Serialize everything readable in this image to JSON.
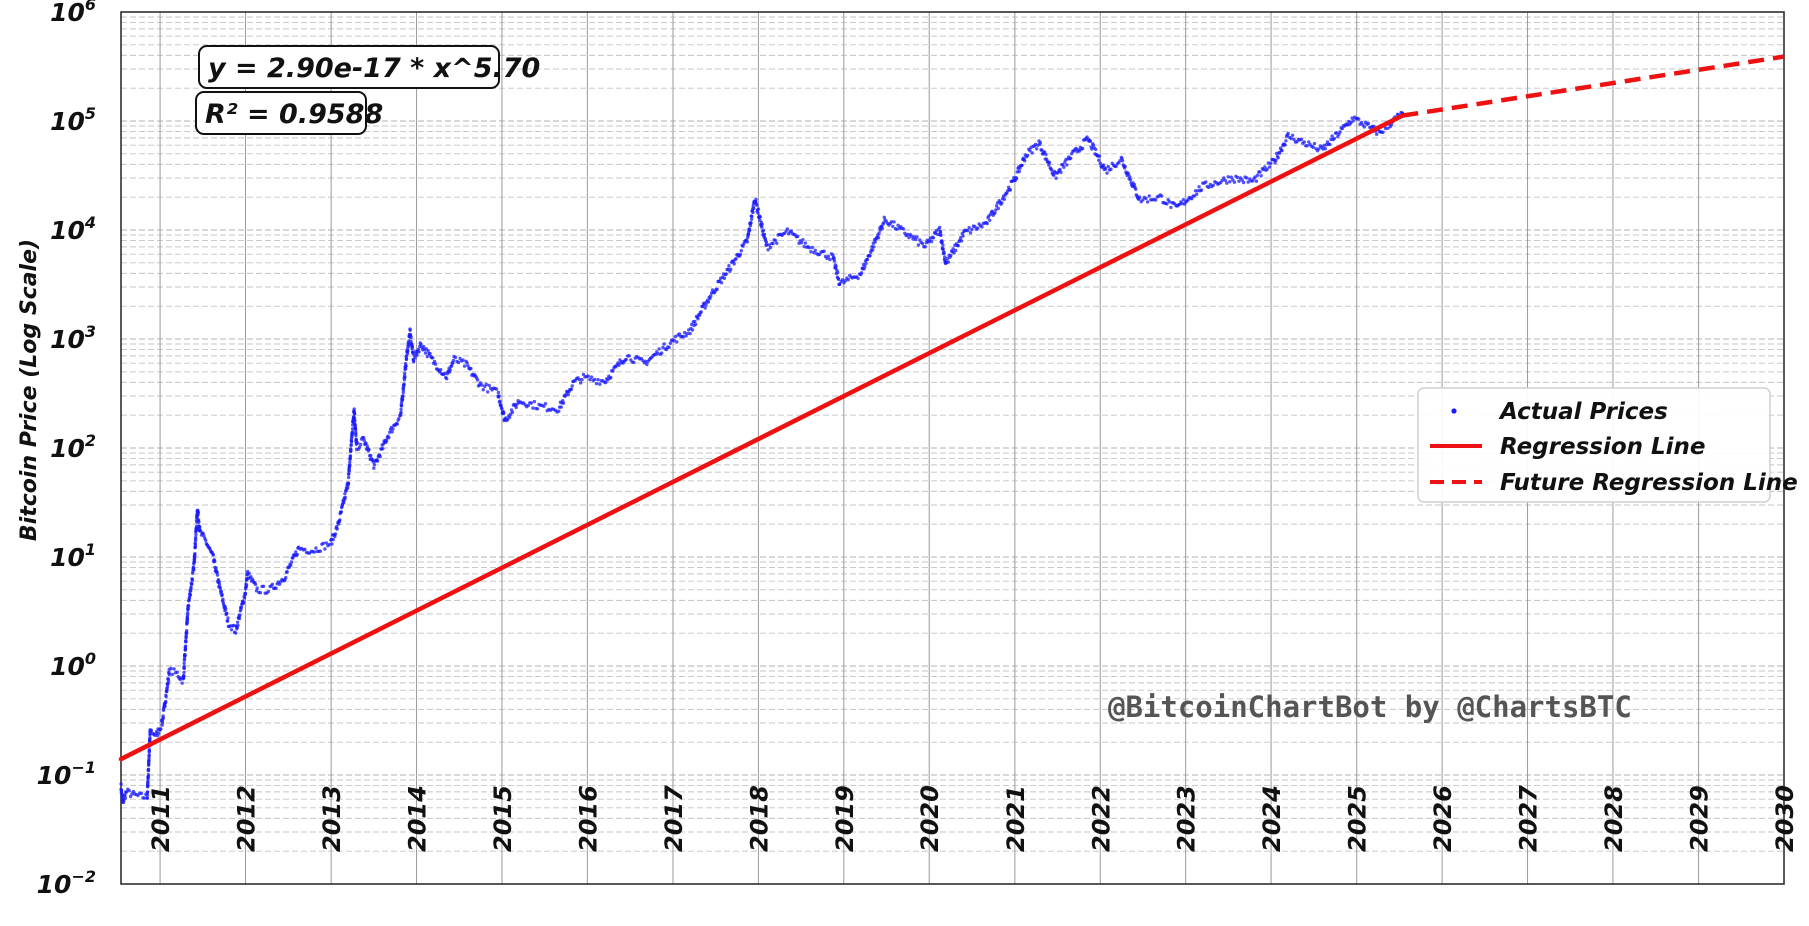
{
  "chart_data": {
    "type": "scatter",
    "ylabel": "Bitcoin Price (Log Scale)",
    "y_scale": "log",
    "ylim": [
      0.01,
      1000000
    ],
    "xlim": [
      "2010-07-18",
      "2030-01-01"
    ],
    "y_ticks": [
      {
        "base": "10",
        "exp": "−2",
        "value": 0.01
      },
      {
        "base": "10",
        "exp": "−1",
        "value": 0.1
      },
      {
        "base": "10",
        "exp": "0",
        "value": 1
      },
      {
        "base": "10",
        "exp": "1",
        "value": 10
      },
      {
        "base": "10",
        "exp": "2",
        "value": 100
      },
      {
        "base": "10",
        "exp": "3",
        "value": 1000
      },
      {
        "base": "10",
        "exp": "4",
        "value": 10000
      },
      {
        "base": "10",
        "exp": "5",
        "value": 100000
      },
      {
        "base": "10",
        "exp": "6",
        "value": 1000000
      }
    ],
    "x_ticks": [
      {
        "label": "2011",
        "date": "2011-01-01"
      },
      {
        "label": "2012",
        "date": "2012-01-01"
      },
      {
        "label": "2013",
        "date": "2013-01-01"
      },
      {
        "label": "2014",
        "date": "2014-01-01"
      },
      {
        "label": "2015",
        "date": "2015-01-01"
      },
      {
        "label": "2016",
        "date": "2016-01-01"
      },
      {
        "label": "2017",
        "date": "2017-01-01"
      },
      {
        "label": "2018",
        "date": "2018-01-01"
      },
      {
        "label": "2019",
        "date": "2019-01-01"
      },
      {
        "label": "2020",
        "date": "2020-01-01"
      },
      {
        "label": "2021",
        "date": "2021-01-01"
      },
      {
        "label": "2022",
        "date": "2022-01-01"
      },
      {
        "label": "2023",
        "date": "2023-01-01"
      },
      {
        "label": "2024",
        "date": "2024-01-01"
      },
      {
        "label": "2025",
        "date": "2025-01-01"
      },
      {
        "label": "2026",
        "date": "2026-01-01"
      },
      {
        "label": "2027",
        "date": "2027-01-01"
      },
      {
        "label": "2028",
        "date": "2028-01-01"
      },
      {
        "label": "2029",
        "date": "2029-01-01"
      },
      {
        "label": "2030",
        "date": "2030-01-01"
      }
    ],
    "equation": "y = 2.90e-17 * x^5.70",
    "r_squared": "R² = 0.9588",
    "legend_position": "center-right",
    "series": [
      {
        "name": "Actual Prices",
        "kind": "scatter",
        "color": "#1a1aff",
        "points": [
          [
            "2010-07-18",
            0.08
          ],
          [
            "2010-07-25",
            0.055
          ],
          [
            "2010-08-10",
            0.07
          ],
          [
            "2010-09-15",
            0.065
          ],
          [
            "2010-10-20",
            0.063
          ],
          [
            "2010-11-07",
            0.063
          ],
          [
            "2010-11-20",
            0.26
          ],
          [
            "2010-12-15",
            0.23
          ],
          [
            "2011-01-10",
            0.3
          ],
          [
            "2011-02-10",
            0.9
          ],
          [
            "2011-03-15",
            0.85
          ],
          [
            "2011-04-10",
            0.73
          ],
          [
            "2011-05-01",
            3.5
          ],
          [
            "2011-05-25",
            8.0
          ],
          [
            "2011-06-10",
            28.0
          ],
          [
            "2011-06-20",
            17.0
          ],
          [
            "2011-07-15",
            14.0
          ],
          [
            "2011-08-15",
            10.0
          ],
          [
            "2011-09-15",
            5.0
          ],
          [
            "2011-10-20",
            2.5
          ],
          [
            "2011-11-20",
            2.1
          ],
          [
            "2011-12-31",
            4.7
          ],
          [
            "2012-01-10",
            7.0
          ],
          [
            "2012-02-20",
            5.0
          ],
          [
            "2012-04-15",
            5.0
          ],
          [
            "2012-06-15",
            6.5
          ],
          [
            "2012-08-15",
            12.0
          ],
          [
            "2012-10-15",
            11.5
          ],
          [
            "2012-12-31",
            13.4
          ],
          [
            "2013-02-01",
            20.0
          ],
          [
            "2013-03-15",
            48.0
          ],
          [
            "2013-04-09",
            230.0
          ],
          [
            "2013-04-20",
            100.0
          ],
          [
            "2013-05-20",
            120.0
          ],
          [
            "2013-07-05",
            68.0
          ],
          [
            "2013-09-01",
            130.0
          ],
          [
            "2013-10-25",
            200.0
          ],
          [
            "2013-11-20",
            700.0
          ],
          [
            "2013-12-04",
            1150.0
          ],
          [
            "2013-12-20",
            650.0
          ],
          [
            "2014-01-20",
            900.0
          ],
          [
            "2014-03-15",
            620.0
          ],
          [
            "2014-05-10",
            450.0
          ],
          [
            "2014-06-10",
            650.0
          ],
          [
            "2014-08-01",
            580.0
          ],
          [
            "2014-10-01",
            380.0
          ],
          [
            "2014-12-15",
            320.0
          ],
          [
            "2015-01-14",
            180.0
          ],
          [
            "2015-03-15",
            270.0
          ],
          [
            "2015-06-15",
            240.0
          ],
          [
            "2015-09-01",
            230.0
          ],
          [
            "2015-11-04",
            400.0
          ],
          [
            "2015-12-15",
            440.0
          ],
          [
            "2016-03-15",
            410.0
          ],
          [
            "2016-06-15",
            700.0
          ],
          [
            "2016-09-01",
            600.0
          ],
          [
            "2016-12-31",
            960.0
          ],
          [
            "2017-03-15",
            1200.0
          ],
          [
            "2017-06-15",
            2600.0
          ],
          [
            "2017-09-01",
            4500.0
          ],
          [
            "2017-11-15",
            8000.0
          ],
          [
            "2017-12-17",
            19500.0
          ],
          [
            "2018-02-06",
            7000.0
          ],
          [
            "2018-03-15",
            8000.0
          ],
          [
            "2018-05-05",
            9700.0
          ],
          [
            "2018-08-01",
            7000.0
          ],
          [
            "2018-11-15",
            5600.0
          ],
          [
            "2018-12-15",
            3200.0
          ],
          [
            "2019-03-15",
            4000.0
          ],
          [
            "2019-06-26",
            12500.0
          ],
          [
            "2019-09-01",
            10000.0
          ],
          [
            "2019-12-15",
            7100.0
          ],
          [
            "2020-02-15",
            10000.0
          ],
          [
            "2020-03-12",
            4900.0
          ],
          [
            "2020-06-01",
            9500.0
          ],
          [
            "2020-09-01",
            11500.0
          ],
          [
            "2020-12-31",
            29000.0
          ],
          [
            "2021-02-15",
            48000.0
          ],
          [
            "2021-04-14",
            63000.0
          ],
          [
            "2021-06-22",
            31000.0
          ],
          [
            "2021-09-01",
            48000.0
          ],
          [
            "2021-11-10",
            68000.0
          ],
          [
            "2022-01-24",
            35000.0
          ],
          [
            "2022-04-01",
            45000.0
          ],
          [
            "2022-06-18",
            19000.0
          ],
          [
            "2022-09-15",
            20000.0
          ],
          [
            "2022-11-21",
            15800.0
          ],
          [
            "2023-03-15",
            25000.0
          ],
          [
            "2023-07-15",
            30000.0
          ],
          [
            "2023-10-15",
            28000.0
          ],
          [
            "2024-01-15",
            43000.0
          ],
          [
            "2024-03-14",
            73000.0
          ],
          [
            "2024-08-05",
            54000.0
          ],
          [
            "2024-11-15",
            90000.0
          ],
          [
            "2024-12-17",
            106000.0
          ],
          [
            "2025-04-08",
            78000.0
          ],
          [
            "2025-07-15",
            118000.0
          ]
        ]
      },
      {
        "name": "Regression Line",
        "kind": "line",
        "color": "#ee1111",
        "points": [
          [
            "2010-07-18",
            0.14
          ],
          [
            "2025-07-15",
            112000.0
          ]
        ]
      },
      {
        "name": "Future Regression Line",
        "kind": "dashed-line",
        "color": "#ee1111",
        "points": [
          [
            "2025-07-15",
            112000.0
          ],
          [
            "2030-01-01",
            390000.0
          ]
        ]
      }
    ]
  },
  "watermark": "@BitcoinChartBot by @ChartsBTC"
}
